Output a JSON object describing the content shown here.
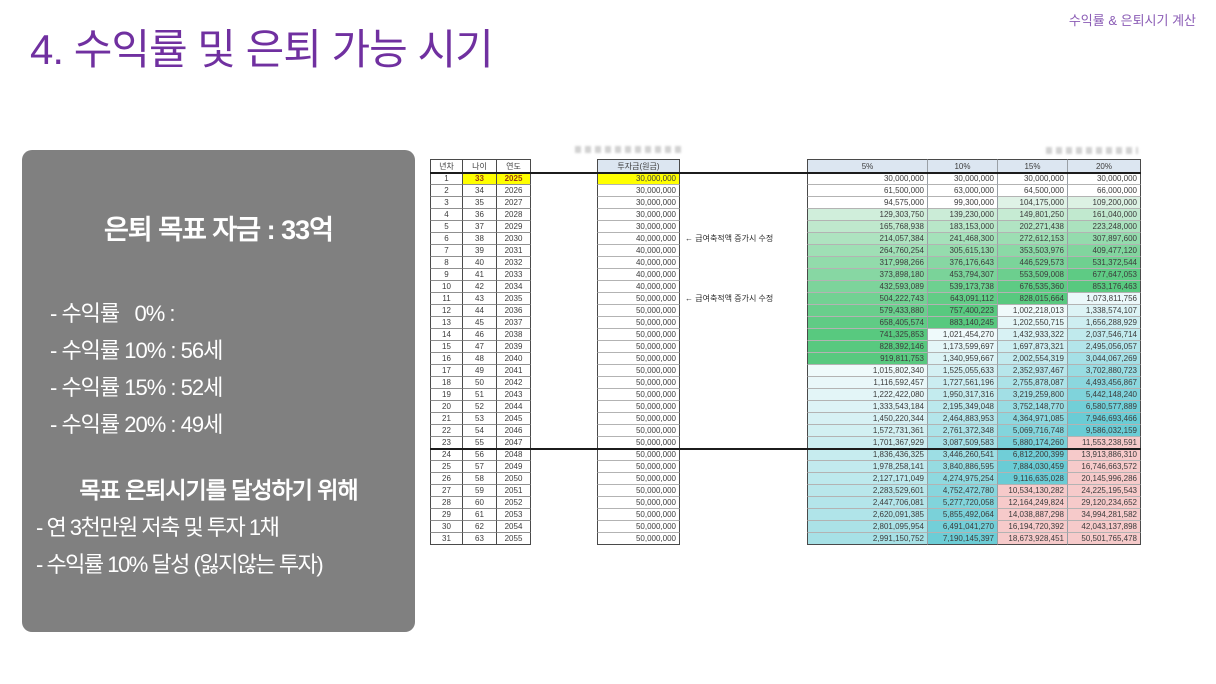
{
  "slide": {
    "title": "4. 수익률 및 은퇴 가능 시기",
    "corner_caption": "수익률 & 은퇴시기 계산"
  },
  "summary_box": {
    "title": "은퇴 목표 자금 : 33억",
    "scenario_lines": [
      "- 수익률   0% : ",
      "- 수익률 10% : 56세",
      "- 수익률 15% : 52세",
      "- 수익률 20% : 49세"
    ],
    "goal_heading": "목표 은퇴시기를 달성하기 위해",
    "goal_lines": [
      "- 연 3천만원 저축 및 투자 1채",
      "- 수익률 10% 달성 (잃지않는 투자)"
    ]
  },
  "table": {
    "headers": {
      "year_index": "년차",
      "age": "나이",
      "year": "연도",
      "principal": "투자금(원금)",
      "rates": [
        "5%",
        "10%",
        "15%",
        "20%"
      ]
    },
    "annotation": "← 급여축적액 증가시 수정",
    "annotation_row_numbers": [
      6,
      11
    ],
    "retirement_divider_before_row": 24,
    "rows": [
      {
        "n": 1,
        "age": 33,
        "year": 2025,
        "principal": 30000000,
        "values": [
          30000000,
          30000000,
          30000000,
          30000000
        ]
      },
      {
        "n": 2,
        "age": 34,
        "year": 2026,
        "principal": 30000000,
        "values": [
          61500000,
          63000000,
          64500000,
          66000000
        ]
      },
      {
        "n": 3,
        "age": 35,
        "year": 2027,
        "principal": 30000000,
        "values": [
          94575000,
          99300000,
          104175000,
          109200000
        ]
      },
      {
        "n": 4,
        "age": 36,
        "year": 2028,
        "principal": 30000000,
        "values": [
          129303750,
          139230000,
          149801250,
          161040000
        ]
      },
      {
        "n": 5,
        "age": 37,
        "year": 2029,
        "principal": 30000000,
        "values": [
          165768938,
          183153000,
          202271438,
          223248000
        ]
      },
      {
        "n": 6,
        "age": 38,
        "year": 2030,
        "principal": 40000000,
        "values": [
          214057384,
          241468300,
          272612153,
          307897600
        ]
      },
      {
        "n": 7,
        "age": 39,
        "year": 2031,
        "principal": 40000000,
        "values": [
          264760254,
          305615130,
          353503976,
          409477120
        ]
      },
      {
        "n": 8,
        "age": 40,
        "year": 2032,
        "principal": 40000000,
        "values": [
          317998266,
          376176643,
          446529573,
          531372544
        ]
      },
      {
        "n": 9,
        "age": 41,
        "year": 2033,
        "principal": 40000000,
        "values": [
          373898180,
          453794307,
          553509008,
          677647053
        ]
      },
      {
        "n": 10,
        "age": 42,
        "year": 2034,
        "principal": 40000000,
        "values": [
          432593089,
          539173738,
          676535360,
          853176463
        ]
      },
      {
        "n": 11,
        "age": 43,
        "year": 2035,
        "principal": 50000000,
        "values": [
          504222743,
          643091112,
          828015664,
          1073811756
        ]
      },
      {
        "n": 12,
        "age": 44,
        "year": 2036,
        "principal": 50000000,
        "values": [
          579433880,
          757400223,
          1002218013,
          1338574107
        ]
      },
      {
        "n": 13,
        "age": 45,
        "year": 2037,
        "principal": 50000000,
        "values": [
          658405574,
          883140245,
          1202550715,
          1656288929
        ]
      },
      {
        "n": 14,
        "age": 46,
        "year": 2038,
        "principal": 50000000,
        "values": [
          741325853,
          1021454270,
          1432933322,
          2037546714
        ]
      },
      {
        "n": 15,
        "age": 47,
        "year": 2039,
        "principal": 50000000,
        "values": [
          828392146,
          1173599697,
          1697873321,
          2495056057
        ]
      },
      {
        "n": 16,
        "age": 48,
        "year": 2040,
        "principal": 50000000,
        "values": [
          919811753,
          1340959667,
          2002554319,
          3044067269
        ]
      },
      {
        "n": 17,
        "age": 49,
        "year": 2041,
        "principal": 50000000,
        "values": [
          1015802340,
          1525055633,
          2352937467,
          3702880723
        ]
      },
      {
        "n": 18,
        "age": 50,
        "year": 2042,
        "principal": 50000000,
        "values": [
          1116592457,
          1727561196,
          2755878087,
          4493456867
        ]
      },
      {
        "n": 19,
        "age": 51,
        "year": 2043,
        "principal": 50000000,
        "values": [
          1222422080,
          1950317316,
          3219259800,
          5442148240
        ]
      },
      {
        "n": 20,
        "age": 52,
        "year": 2044,
        "principal": 50000000,
        "values": [
          1333543184,
          2195349048,
          3752148770,
          6580577889
        ]
      },
      {
        "n": 21,
        "age": 53,
        "year": 2045,
        "principal": 50000000,
        "values": [
          1450220344,
          2464883953,
          4364971085,
          7946693466
        ]
      },
      {
        "n": 22,
        "age": 54,
        "year": 2046,
        "principal": 50000000,
        "values": [
          1572731361,
          2761372348,
          5069716748,
          9586032159
        ]
      },
      {
        "n": 23,
        "age": 55,
        "year": 2047,
        "principal": 50000000,
        "values": [
          1701367929,
          3087509583,
          5880174260,
          11553238591
        ]
      },
      {
        "n": 24,
        "age": 56,
        "year": 2048,
        "principal": 50000000,
        "values": [
          1836436325,
          3446260541,
          6812200399,
          13913886310
        ]
      },
      {
        "n": 25,
        "age": 57,
        "year": 2049,
        "principal": 50000000,
        "values": [
          1978258141,
          3840886595,
          7884030459,
          16746663572
        ]
      },
      {
        "n": 26,
        "age": 58,
        "year": 2050,
        "principal": 50000000,
        "values": [
          2127171049,
          4274975254,
          9116635028,
          20145996286
        ]
      },
      {
        "n": 27,
        "age": 59,
        "year": 2051,
        "principal": 50000000,
        "values": [
          2283529601,
          4752472780,
          10534130282,
          24225195543
        ]
      },
      {
        "n": 28,
        "age": 60,
        "year": 2052,
        "principal": 50000000,
        "values": [
          2447706081,
          5277720058,
          12164249824,
          29120234652
        ]
      },
      {
        "n": 29,
        "age": 61,
        "year": 2053,
        "principal": 50000000,
        "values": [
          2620091385,
          5855492064,
          14038887298,
          34994281582
        ]
      },
      {
        "n": 30,
        "age": 62,
        "year": 2054,
        "principal": 50000000,
        "values": [
          2801095954,
          6491041270,
          16194720392,
          42043137898
        ]
      },
      {
        "n": 31,
        "age": 63,
        "year": 2055,
        "principal": 50000000,
        "values": [
          2991150752,
          7190145397,
          18673928451,
          50501765478
        ]
      }
    ]
  },
  "colors": {
    "title_purple": "#7030a0",
    "caption_purple": "#8a5bb5",
    "box_gray": "#808080",
    "box_text": "#ffffff",
    "highlight_yellow": "#ffff00",
    "highlight_text_red": "#9c3f10",
    "header_fill": "#dce6f1",
    "scale_green_low": "#e2f3e8",
    "scale_green_high": "#58c97f",
    "scale_cyan_low": "#f0fafb",
    "scale_cyan_high": "#6accd5",
    "scale_pink": "#f6caca"
  }
}
